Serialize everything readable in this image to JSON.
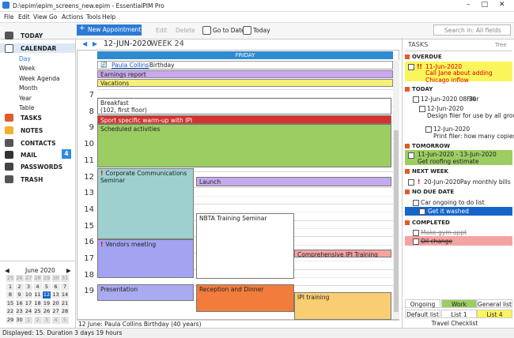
{
  "window": {
    "title": "D:\\epim\\epim_screens_new.epim - EssentialPIM Pro"
  },
  "menu": [
    "File",
    "Edit",
    "View",
    "Go",
    "Actions",
    "Tools",
    "Help"
  ],
  "toolbar": {
    "new": "New Appointment",
    "edit": "Edit",
    "delete": "Delete",
    "goto": "Go to Date",
    "today": "Today",
    "search": "Search in: All fields"
  },
  "nav": {
    "today": "TODAY",
    "calendar": "CALENDAR",
    "views": [
      "Day",
      "Week",
      "Week Agenda",
      "Month",
      "Year",
      "Table"
    ],
    "tasks": "TASKS",
    "notes": "NOTES",
    "contacts": "CONTACTS",
    "mail": "MAIL",
    "mail_count": 4,
    "passwords": "PASSWORDS",
    "trash": "TRASH"
  },
  "minical": {
    "title": "June 2020",
    "weeks": [
      [
        25,
        26,
        27,
        28,
        29,
        30,
        31
      ],
      [
        1,
        2,
        3,
        4,
        5,
        6,
        7
      ],
      [
        8,
        9,
        10,
        11,
        12,
        13,
        14
      ],
      [
        15,
        16,
        17,
        18,
        19,
        20,
        21
      ],
      [
        22,
        23,
        24,
        25,
        26,
        27,
        28
      ],
      [
        29,
        30,
        1,
        2,
        3,
        4,
        5
      ]
    ]
  },
  "calendar": {
    "date": "12-JUN-2020",
    "week": "WEEK 24",
    "day": "FRIDAY",
    "birthday": {
      "name": "Paula Collins",
      "suffix": ". Birthday"
    },
    "allday": [
      {
        "title": "Earnings report",
        "color": "#c9a8ef"
      },
      {
        "title": "Vacations",
        "color": "#f7ee7a"
      }
    ],
    "hours": [
      7,
      8,
      9,
      10,
      11,
      12,
      13,
      14,
      15,
      16,
      17,
      18,
      19
    ],
    "events": [
      {
        "title": "Breakfast",
        "detail": "(102, first floor)",
        "color": "#ffffff"
      },
      {
        "title": "Sport specific warm-up with IPI",
        "color": "#d6312b"
      },
      {
        "title": "Scheduled activities",
        "color": "#9ccd62"
      },
      {
        "flag": "!",
        "title": "Corporate Communications Seminar",
        "color": "#9fd0d0"
      },
      {
        "title": "Launch",
        "color": "#c5aaee"
      },
      {
        "title": "NBTA Training Seminar",
        "color": "#ffffff"
      },
      {
        "flag": "!",
        "title": "Vendors meeting",
        "color": "#a3a3f2"
      },
      {
        "title": "Comprehensive IPI Training",
        "color": "#f4a3a3"
      },
      {
        "title": "Presentation",
        "color": "#aaaaf2"
      },
      {
        "title": "Reception and Dinner",
        "color": "#f27c3c"
      },
      {
        "title": "IPI training",
        "color": "#f9cd72"
      }
    ],
    "footer": "12 June:  Paula Collins Birthday (40 years)"
  },
  "status": "Displayed: 15. Duration 3 days 19 hours",
  "tasks": {
    "title": "TASKS",
    "view": "Tree",
    "overdue": {
      "label": "OVERDUE",
      "flag": "!!",
      "date": "11-Jun-2020",
      "text": "Call Jane about adding Chicago inflow"
    },
    "today": {
      "label": "TODAY",
      "items": [
        {
          "date": "12-Jun-2020 08:30",
          "text": "Filer"
        },
        {
          "date": "12-Jun-2020",
          "text": "Design filer for use by all groups"
        },
        {
          "date": "12-Jun-2020",
          "text": "Print filer: how many copies?"
        }
      ]
    },
    "tomorrow": {
      "label": "TOMORROW",
      "date": "11-Jun-2020 - 13-Jun-2020",
      "text": "Get roofing estimate"
    },
    "next_week": {
      "label": "NEXT WEEK",
      "flag": "!",
      "date": "20-Jun-2020",
      "text": "Pay monthly bills"
    },
    "no_due": {
      "label": "NO DUE DATE",
      "items": [
        "Car ongoing to do list",
        "Get it washed"
      ]
    },
    "completed": {
      "label": "COMPLETED",
      "items": [
        "Make gym appt",
        "Oil change"
      ]
    },
    "tabs": [
      "Ongoing",
      "Work",
      "General list"
    ],
    "lists": [
      "Default list",
      "List 1",
      "List 4"
    ],
    "footer": "Travel Checklist"
  }
}
